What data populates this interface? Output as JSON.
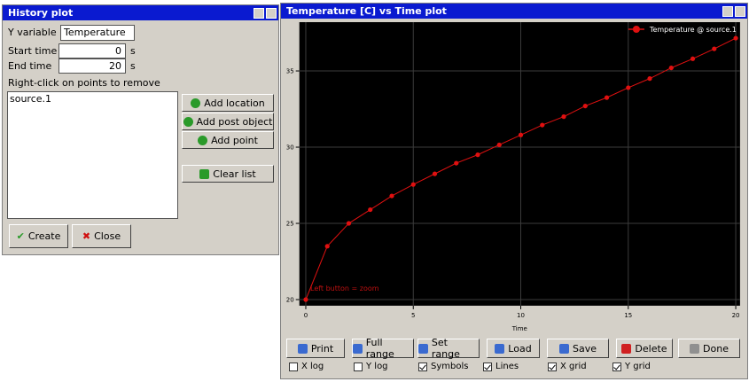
{
  "history_window": {
    "title": "History plot",
    "y_variable_label": "Y variable",
    "y_variable": "Temperature",
    "start_time_label": "Start time",
    "start_time": "0",
    "start_unit": "s",
    "end_time_label": "End time",
    "end_time": "20",
    "end_unit": "s",
    "hint": "Right-click on points to remove",
    "list": [
      "source.1"
    ],
    "side_buttons": [
      "Add location",
      "Add post object",
      "Add point",
      "Clear list"
    ],
    "create": "Create",
    "close": "Close"
  },
  "plot_window": {
    "title": "Temperature [C] vs Time plot",
    "buttons": [
      "Print",
      "Full range",
      "Set range",
      "Load",
      "Save",
      "Delete",
      "Done"
    ],
    "checkboxes": [
      {
        "label": "X log",
        "checked": false
      },
      {
        "label": "Y log",
        "checked": false
      },
      {
        "label": "Symbols",
        "checked": true
      },
      {
        "label": "Lines",
        "checked": true
      },
      {
        "label": "X grid",
        "checked": true
      },
      {
        "label": "Y grid",
        "checked": true
      }
    ]
  },
  "chart_data": {
    "type": "line",
    "xlabel": "Time",
    "annotation": "Left button = zoom",
    "x": [
      0,
      1,
      2,
      3,
      4,
      5,
      6,
      7,
      8,
      9,
      10,
      11,
      12,
      13,
      14,
      15,
      16,
      17,
      18,
      19,
      20
    ],
    "series": [
      {
        "name": "Temperature @ source.1",
        "color": "#e01010",
        "values": [
          20.0,
          23.5,
          25.0,
          25.9,
          26.8,
          27.55,
          28.25,
          28.95,
          29.5,
          30.15,
          30.8,
          31.45,
          32.0,
          32.7,
          33.25,
          33.9,
          34.5,
          35.2,
          35.8,
          36.45,
          37.15
        ]
      }
    ],
    "xlim": [
      -0.3,
      20.2
    ],
    "ylim": [
      19.6,
      38.2
    ],
    "xticks": [
      0,
      5,
      10,
      15,
      20
    ],
    "yticks": [
      20,
      25,
      30,
      35
    ],
    "grid": true,
    "legend": "top-right"
  }
}
